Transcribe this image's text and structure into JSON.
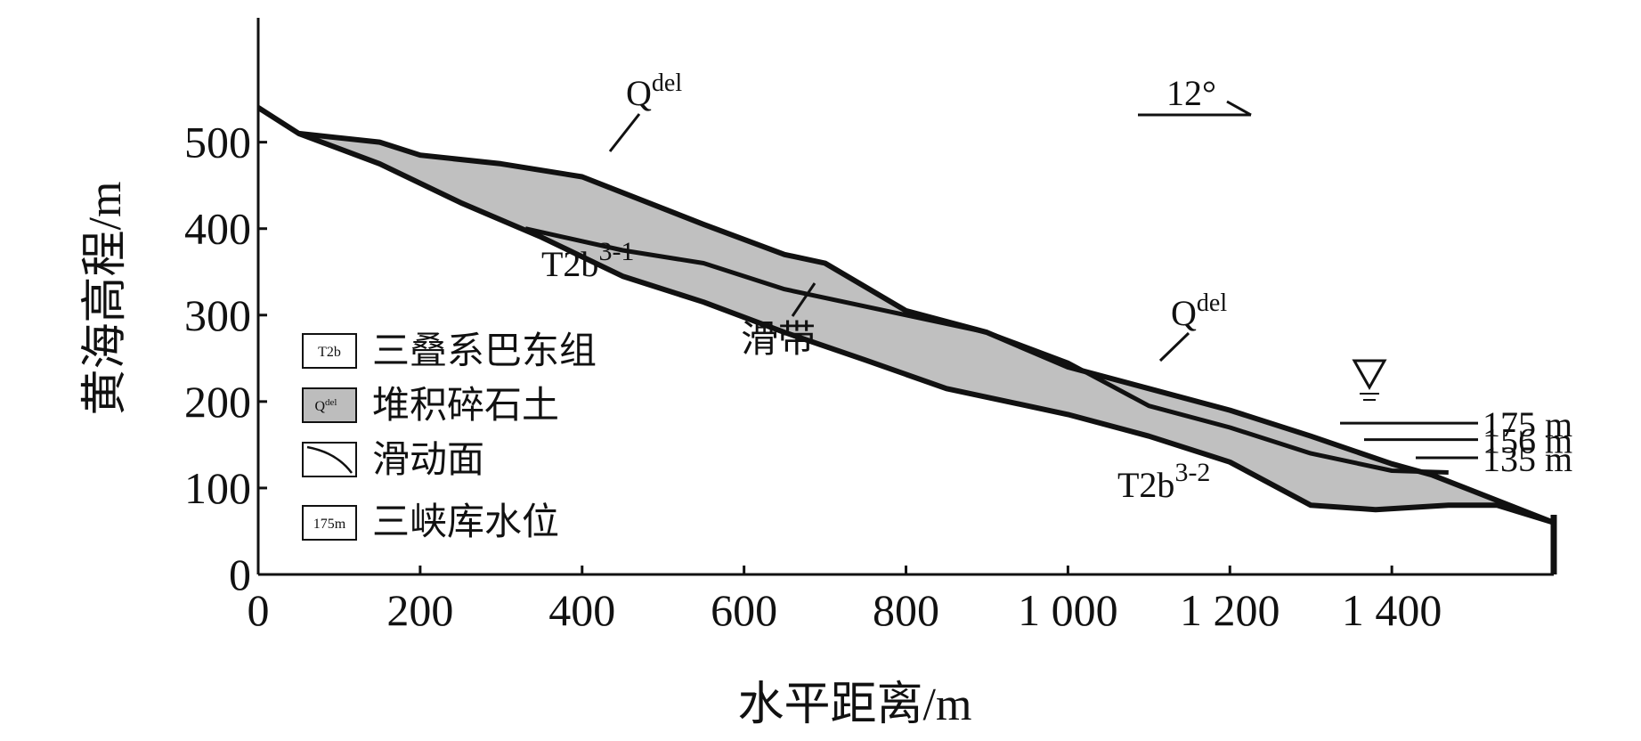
{
  "axes": {
    "x_title": "水平距离/m",
    "y_title": "黄海高程/m",
    "x_ticks": [
      {
        "value": 0,
        "label": "0"
      },
      {
        "value": 200,
        "label": "200"
      },
      {
        "value": 400,
        "label": "400"
      },
      {
        "value": 600,
        "label": "600"
      },
      {
        "value": 800,
        "label": "800"
      },
      {
        "value": 1000,
        "label": "1 000"
      },
      {
        "value": 1200,
        "label": "1 200"
      },
      {
        "value": 1400,
        "label": "1 400"
      }
    ],
    "y_ticks": [
      {
        "value": 0,
        "label": "0"
      },
      {
        "value": 100,
        "label": "100"
      },
      {
        "value": 200,
        "label": "200"
      },
      {
        "value": 300,
        "label": "300"
      },
      {
        "value": 400,
        "label": "400"
      },
      {
        "value": 500,
        "label": "500"
      }
    ],
    "x_range": [
      0,
      1600
    ],
    "y_range": [
      0,
      540
    ]
  },
  "labels": {
    "qdel_top_base": "Q",
    "qdel_top_sup": "del",
    "qdel_bottom_base": "Q",
    "qdel_bottom_sup": "del",
    "t2b31_base": "T2b",
    "t2b31_sup": "3-1",
    "t2b32_base": "T2b",
    "t2b32_sup": "3-2",
    "slip_zone": "滑带",
    "dip": "12°"
  },
  "water_levels": [
    {
      "label": "175 m",
      "elevation": 175
    },
    {
      "label": "156 m",
      "elevation": 156
    },
    {
      "label": "135 m",
      "elevation": 135
    }
  ],
  "legend": [
    {
      "symbol": "T2b",
      "text": "三叠系巴东组",
      "fill": "#ffffff"
    },
    {
      "symbol_base": "Q",
      "symbol_sup": "del",
      "text": "堆积碎石土",
      "fill": "#bdbdbd"
    },
    {
      "symbol": "slip-curve",
      "text": "滑动面",
      "fill": "#ffffff"
    },
    {
      "symbol": "175m",
      "text": "三峡库水位",
      "fill": "#ffffff"
    }
  ],
  "colors": {
    "deposit_fill": "#c0c0c0",
    "line": "#111111"
  },
  "profiles": {
    "ground_surface": [
      [
        0,
        540
      ],
      [
        50,
        510
      ],
      [
        150,
        500
      ],
      [
        200,
        485
      ],
      [
        300,
        475
      ],
      [
        400,
        460
      ],
      [
        550,
        405
      ],
      [
        650,
        370
      ],
      [
        700,
        360
      ],
      [
        800,
        305
      ],
      [
        900,
        280
      ],
      [
        1000,
        240
      ],
      [
        1100,
        215
      ],
      [
        1200,
        190
      ],
      [
        1300,
        160
      ],
      [
        1400,
        128
      ],
      [
        1450,
        115
      ],
      [
        1600,
        60
      ]
    ],
    "upper_slip_surface": [
      [
        330,
        400
      ],
      [
        450,
        375
      ],
      [
        550,
        360
      ],
      [
        650,
        330
      ],
      [
        800,
        300
      ],
      [
        900,
        280
      ],
      [
        1000,
        245
      ],
      [
        1050,
        220
      ],
      [
        1100,
        195
      ],
      [
        1200,
        170
      ],
      [
        1300,
        140
      ],
      [
        1400,
        120
      ],
      [
        1470,
        118
      ]
    ],
    "lower_slip_surface": [
      [
        50,
        510
      ],
      [
        150,
        475
      ],
      [
        250,
        430
      ],
      [
        350,
        390
      ],
      [
        450,
        345
      ],
      [
        550,
        315
      ],
      [
        650,
        280
      ],
      [
        750,
        248
      ],
      [
        850,
        215
      ],
      [
        1000,
        185
      ],
      [
        1100,
        160
      ],
      [
        1200,
        130
      ],
      [
        1300,
        80
      ],
      [
        1380,
        75
      ],
      [
        1470,
        80
      ],
      [
        1530,
        80
      ],
      [
        1600,
        60
      ]
    ]
  }
}
